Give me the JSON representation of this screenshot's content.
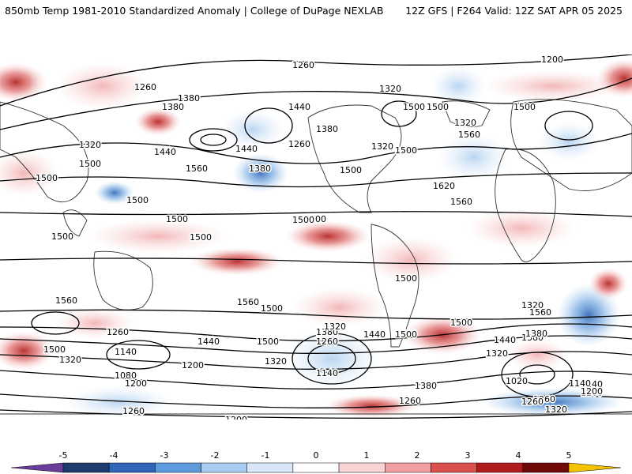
{
  "header": {
    "title": "850mb Temp 1981-2010 Standardized Anomaly | College of DuPage NEXLAB",
    "run": "12Z GFS | F264 Valid: 12Z SAT APR 05 2025"
  },
  "map": {
    "projection": "cylindrical global",
    "fill_variable": "850mb temperature standardized anomaly",
    "contour_variable": "850mb geopotential height (dam)",
    "contour_labels": [
      "1200",
      "1260",
      "1260",
      "1320",
      "1380",
      "1380",
      "1440",
      "1500",
      "1500",
      "1500",
      "1440",
      "1260",
      "1320",
      "1380",
      "1560",
      "1320",
      "1320",
      "1380",
      "1440",
      "1500",
      "1620",
      "1560",
      "1560",
      "1500",
      "1500",
      "1500",
      "1500",
      "1500",
      "1500",
      "1500",
      "1560",
      "1560",
      "1500",
      "1500",
      "1380",
      "1260",
      "1140",
      "1500",
      "1320",
      "1440",
      "1500",
      "1200",
      "1080",
      "1200",
      "1140",
      "1260",
      "1260",
      "1200",
      "1380",
      "1260",
      "1440",
      "1320",
      "1500",
      "1500",
      "1140",
      "1380",
      "1320",
      "1200",
      "1260",
      "1320",
      "1380",
      "1440",
      "1320",
      "1020",
      "1140",
      "1200",
      "1260",
      "1320",
      "1560",
      "1500",
      "1500",
      "1500"
    ]
  },
  "colorbar": {
    "ticks": [
      "-5",
      "-4",
      "-3",
      "-2",
      "-1",
      "0",
      "1",
      "2",
      "3",
      "4",
      "5"
    ],
    "colors": [
      "#6a3d9a",
      "#1f3a6e",
      "#2f66b5",
      "#5e9bdc",
      "#a9cbee",
      "#d8e7f7",
      "#ffffff",
      "#f8d4d4",
      "#ef9f9f",
      "#d9504f",
      "#b01c1c",
      "#6e0a0a",
      "#f5c400"
    ]
  }
}
